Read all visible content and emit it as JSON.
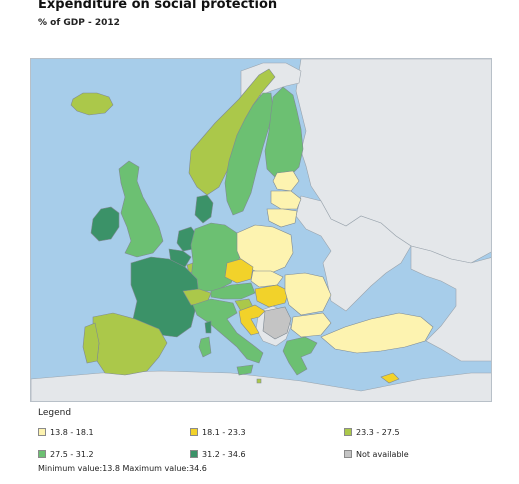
{
  "title": "Expenditure on social protection",
  "subtitle": "% of GDP - 2012",
  "colors": {
    "sea": "#a7cdea",
    "non_eu_land": "#e4e7ea",
    "border": "#9aa4ad",
    "c1": "#fdf3b0",
    "c2": "#f2d22a",
    "c3": "#abc84a",
    "c4": "#6cc072",
    "c5": "#3b9268",
    "na": "#c4c4c4"
  },
  "legend": {
    "title": "Legend",
    "items": [
      {
        "label": "13.8 - 18.1",
        "color": "#fdf3b0"
      },
      {
        "label": "18.1 - 23.3",
        "color": "#f2d22a"
      },
      {
        "label": "23.3 - 27.5",
        "color": "#abc84a"
      },
      {
        "label": "27.5 - 31.2",
        "color": "#6cc072"
      },
      {
        "label": "31.2 - 34.6",
        "color": "#3b9268"
      },
      {
        "label": "Not available",
        "color": "#c4c4c4"
      }
    ],
    "minmax": "Minimum value:13.8 Maximum value:34.6"
  }
}
